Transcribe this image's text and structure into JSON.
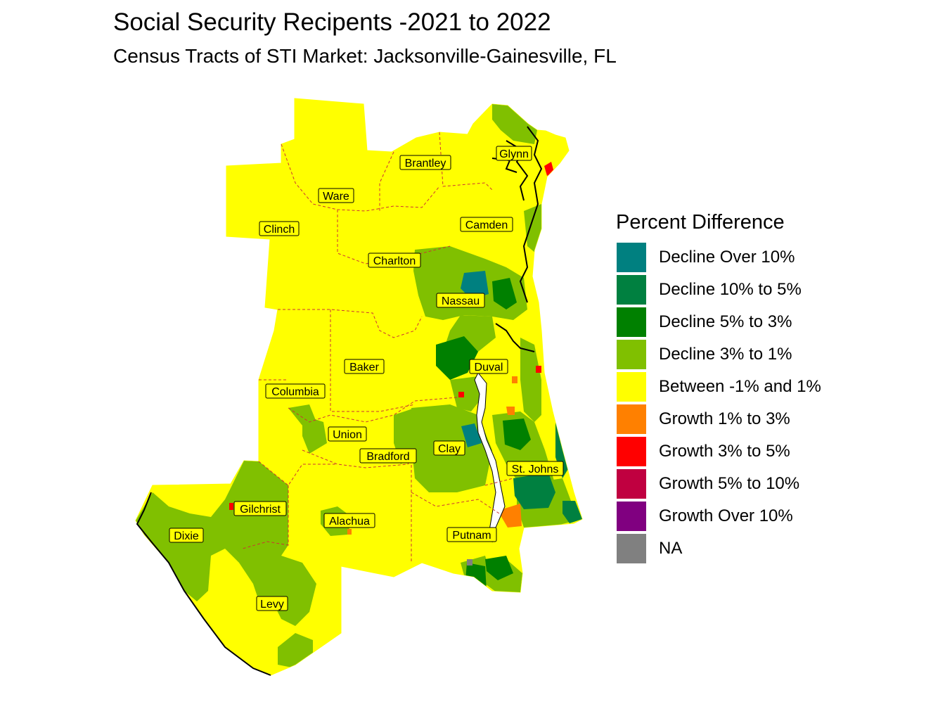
{
  "title": "Social Security Recipents -2021 to 2022",
  "subtitle": "Census Tracts of STI Market: Jacksonville-Gainesville, FL",
  "legend": {
    "title": "Percent Difference",
    "items": [
      {
        "label": "Decline Over 10%",
        "color": "#008080"
      },
      {
        "label": "Decline 10% to 5%",
        "color": "#008040"
      },
      {
        "label": "Decline 5% to 3%",
        "color": "#008000"
      },
      {
        "label": "Decline 3% to 1%",
        "color": "#80c000"
      },
      {
        "label": "Between -1% and 1%",
        "color": "#ffff00"
      },
      {
        "label": "Growth 1% to 3%",
        "color": "#ff8000"
      },
      {
        "label": "Growth 3% to 5%",
        "color": "#ff0000"
      },
      {
        "label": "Growth 5% to 10%",
        "color": "#c00040"
      },
      {
        "label": "Growth Over 10%",
        "color": "#800080"
      },
      {
        "label": "NA",
        "color": "#808080"
      }
    ]
  },
  "counties": [
    "Glynn",
    "Brantley",
    "Ware",
    "Camden",
    "Clinch",
    "Charlton",
    "Nassau",
    "Baker",
    "Duval",
    "Columbia",
    "Union",
    "Clay",
    "Bradford",
    "St. Johns",
    "Gilchrist",
    "Alachua",
    "Dixie",
    "Putnam",
    "Levy"
  ]
}
